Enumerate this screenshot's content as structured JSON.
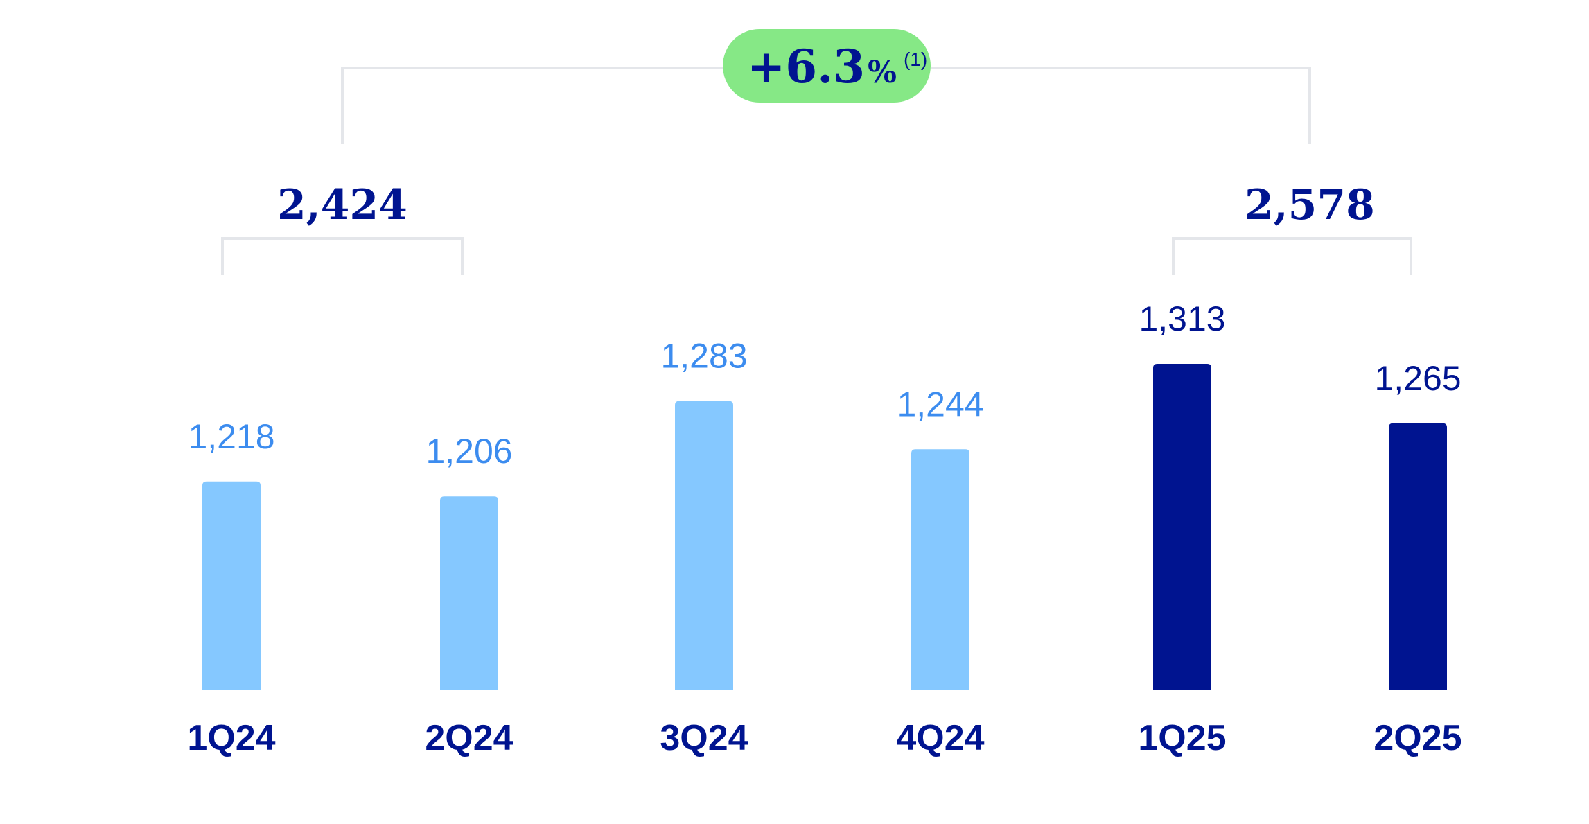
{
  "chart_data": {
    "type": "bar",
    "categories": [
      "1Q24",
      "2Q24",
      "3Q24",
      "4Q24",
      "1Q25",
      "2Q25"
    ],
    "values": [
      1218,
      1206,
      1283,
      1244,
      1313,
      1265
    ],
    "value_labels": [
      "1,218",
      "1,206",
      "1,283",
      "1,244",
      "1,313",
      "1,265"
    ],
    "ylim": [
      1050,
      1313
    ],
    "grid": false,
    "colors": {
      "bars_2024": "#85C8FF",
      "labels_2024": "#3C8CEF",
      "bars_2025": "#001490",
      "labels_2025": "#001490",
      "category_labels": "#001490",
      "bracket": "#E4E6EA",
      "badge_bg": "#86E886",
      "badge_text": "#001490"
    },
    "groups": [
      {
        "label": "2,424",
        "value": 2424,
        "from": 0,
        "to": 1
      },
      {
        "label": "2,578",
        "value": 2578,
        "from": 4,
        "to": 5
      }
    ],
    "change": {
      "main": "+6.3",
      "percent_sign": "%",
      "note": "(1)"
    }
  }
}
